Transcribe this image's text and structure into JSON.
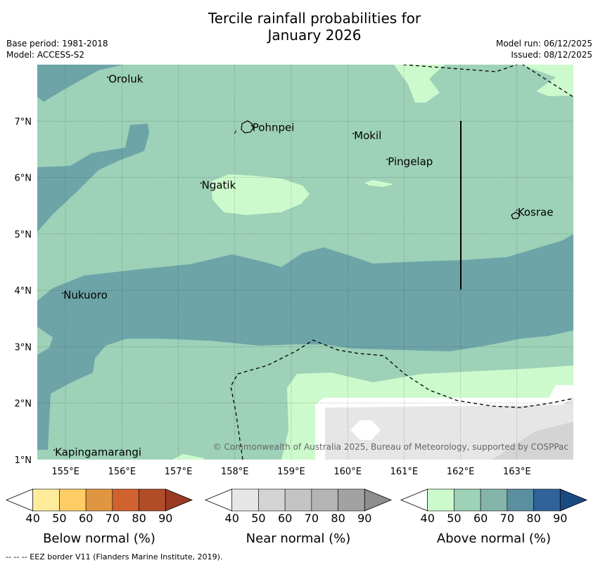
{
  "title": {
    "line1": "Tercile rainfall probabilities for",
    "line2": "January 2026"
  },
  "meta": {
    "base_period": "Base period: 1981-2018",
    "model": "Model: ACCESS-S2",
    "model_run": "Model run: 06/12/2025",
    "issued": "Issued: 08/12/2025"
  },
  "map": {
    "lon_range": [
      154.5,
      164.0
    ],
    "lat_range": [
      1.0,
      8.0
    ],
    "lon_ticks": [
      "155°E",
      "156°E",
      "157°E",
      "158°E",
      "159°E",
      "160°E",
      "161°E",
      "162°E",
      "163°E"
    ],
    "lat_ticks": [
      "1°N",
      "2°N",
      "3°N",
      "4°N",
      "5°N",
      "6°N",
      "7°N"
    ],
    "places": [
      {
        "name": "Oroluk",
        "lon": 155.75,
        "lat": 7.68
      },
      {
        "name": "Pohnpei",
        "lon": 158.3,
        "lat": 6.82
      },
      {
        "name": "Mokil",
        "lon": 160.1,
        "lat": 6.68
      },
      {
        "name": "Pingelap",
        "lon": 160.7,
        "lat": 6.22
      },
      {
        "name": "Ngatik",
        "lon": 157.4,
        "lat": 5.8
      },
      {
        "name": "Kosrae",
        "lon": 163.0,
        "lat": 5.32
      },
      {
        "name": "Nukuoro",
        "lon": 154.95,
        "lat": 3.85
      },
      {
        "name": "Kapingamarangi",
        "lon": 154.8,
        "lat": 1.07
      }
    ],
    "copyright": "© Commonwealth of Australia 2025, Bureau of Meteorology, supported by COSPPac",
    "colors": {
      "above_50": "#9dd1b8",
      "above_60": "#6ca4a8",
      "above_40": "#ccfacc",
      "near_40": "#e6e6e6",
      "near_50": "#d4d4d4",
      "background": "#ffffff"
    }
  },
  "legends": [
    {
      "label": "Below normal (%)",
      "ticks": [
        "40",
        "50",
        "60",
        "70",
        "80",
        "90"
      ],
      "colors": [
        "#ffffff",
        "#ffeb99",
        "#ffcc66",
        "#e09540",
        "#d06230",
        "#b04d28",
        "#9a3a22"
      ]
    },
    {
      "label": "Near normal (%)",
      "ticks": [
        "40",
        "50",
        "60",
        "70",
        "80",
        "90"
      ],
      "colors": [
        "#ffffff",
        "#e6e6e6",
        "#d4d4d4",
        "#c4c4c4",
        "#b4b4b4",
        "#a2a2a2",
        "#8e8e8e"
      ]
    },
    {
      "label": "Above normal (%)",
      "ticks": [
        "40",
        "50",
        "60",
        "70",
        "80",
        "90"
      ],
      "colors": [
        "#ffffff",
        "#ccfacc",
        "#9dd1b8",
        "#85b5a8",
        "#5a8fa0",
        "#2f6399",
        "#1a4a82"
      ]
    }
  ],
  "footer": "--  --  -- EEZ border V11 (Flanders Marine Institute, 2019)."
}
